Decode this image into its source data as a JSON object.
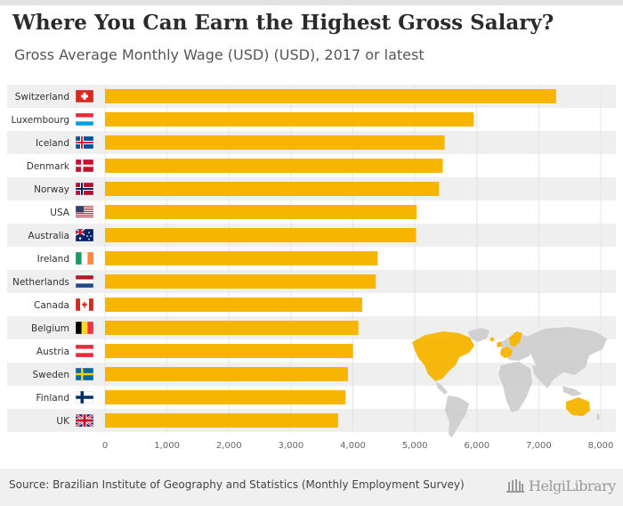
{
  "header": {
    "title": "Where You Can Earn the Highest Gross Salary?",
    "subtitle": "Gross Average Monthly Wage (USD) (USD), 2017 or latest"
  },
  "footer": {
    "source": "Source: Brazilian Institute of Geography and Statistics (Monthly Employment Survey)",
    "logo_text": "HelgiLibrary"
  },
  "colors": {
    "bar": "#f7b500",
    "row_band": "#efefef",
    "grid": "#e4e4e4",
    "map_land": "#cfcfcf",
    "map_highlight": "#f7b500"
  },
  "chart_data": {
    "type": "bar",
    "orientation": "horizontal",
    "title": "Where You Can Earn the Highest Gross Salary?",
    "subtitle": "Gross Average Monthly Wage (USD) (USD), 2017 or latest",
    "categories": [
      "Switzerland",
      "Luxembourg",
      "Iceland",
      "Denmark",
      "Norway",
      "USA",
      "Australia",
      "Ireland",
      "Netherlands",
      "Canada",
      "Belgium",
      "Austria",
      "Sweden",
      "Finland",
      "UK"
    ],
    "values": [
      7280,
      5950,
      5480,
      5450,
      5390,
      5030,
      5020,
      4400,
      4370,
      4150,
      4090,
      4000,
      3920,
      3880,
      3760
    ],
    "xlim": [
      0,
      8000
    ],
    "xticks": [
      "0",
      "1,000",
      "2,000",
      "3,000",
      "4,000",
      "5,000",
      "6,000",
      "7,000",
      "8,000"
    ],
    "xlabel": "",
    "ylabel": "",
    "grid": true,
    "legend": "none"
  }
}
